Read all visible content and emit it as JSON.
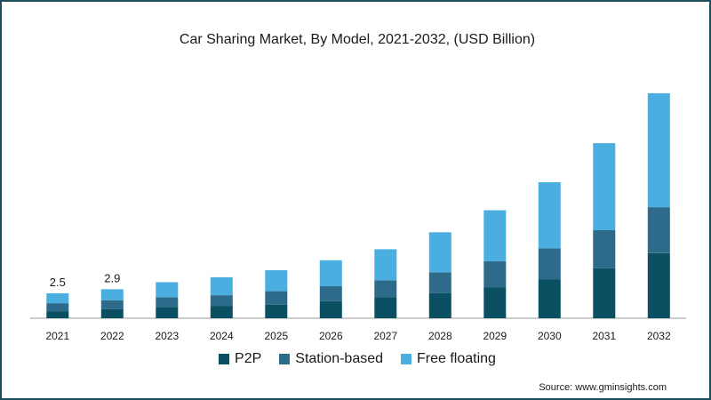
{
  "chart_data": {
    "type": "bar",
    "stacked": true,
    "title": "Car Sharing Market, By Model, 2021-2032, (USD Billion)",
    "categories": [
      "2021",
      "2022",
      "2023",
      "2024",
      "2025",
      "2026",
      "2027",
      "2028",
      "2029",
      "2030",
      "2031",
      "2032"
    ],
    "series": [
      {
        "name": "P2P",
        "color": "#0b4f63",
        "values": [
          0.7,
          0.9,
          1.1,
          1.2,
          1.4,
          1.7,
          2.1,
          2.5,
          3.1,
          3.9,
          5.0,
          6.5
        ]
      },
      {
        "name": "Station-based",
        "color": "#2e6b8a",
        "values": [
          0.8,
          0.9,
          1.0,
          1.1,
          1.3,
          1.5,
          1.7,
          2.1,
          2.6,
          3.1,
          3.8,
          4.6
        ]
      },
      {
        "name": "Free floating",
        "color": "#4aaee0",
        "values": [
          1.0,
          1.1,
          1.5,
          1.8,
          2.1,
          2.6,
          3.1,
          4.0,
          5.1,
          6.6,
          8.7,
          11.4
        ]
      }
    ],
    "data_labels": {
      "2021": "2.5",
      "2022": "2.9"
    },
    "ylim": [
      0,
      24
    ],
    "grid": false,
    "legend_position": "bottom"
  },
  "source": "Source: www.gminsights.com"
}
